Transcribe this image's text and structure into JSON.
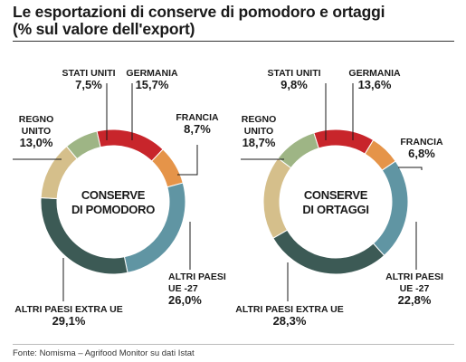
{
  "title_line1": "Le esportazioni di conserve di pomodoro e ortaggi",
  "title_line2": "(% sul valore dell'export)",
  "source": "Fonte: Nomisma – Agrifood Monitor su dati Istat",
  "colors": {
    "germania": "#c8252b",
    "francia": "#e59449",
    "altri_ue": "#6095a3",
    "extra_ue": "#3c5a55",
    "regno_unito": "#d5bf8b",
    "stati_uniti": "#9eb585",
    "leader": "#1a1a1a"
  },
  "chart_data": [
    {
      "type": "pie",
      "center_label": [
        "CONSERVE",
        "DI POMODORO"
      ],
      "slices": [
        {
          "key": "germania",
          "label": [
            "GERMANIA"
          ],
          "value": 15.7,
          "display": "15,7%"
        },
        {
          "key": "francia",
          "label": [
            "FRANCIA"
          ],
          "value": 8.7,
          "display": "8,7%"
        },
        {
          "key": "altri_ue",
          "label": [
            "ALTRI PAESI",
            "UE -27"
          ],
          "value": 26.0,
          "display": "26,0%"
        },
        {
          "key": "extra_ue",
          "label": [
            "ALTRI PAESI EXTRA UE"
          ],
          "value": 29.1,
          "display": "29,1%"
        },
        {
          "key": "regno_unito",
          "label": [
            "REGNO",
            "UNITO"
          ],
          "value": 13.0,
          "display": "13,0%"
        },
        {
          "key": "stati_uniti",
          "label": [
            "STATI UNITI"
          ],
          "value": 7.5,
          "display": "7,5%"
        }
      ]
    },
    {
      "type": "pie",
      "center_label": [
        "CONSERVE",
        "DI ORTAGGI"
      ],
      "slices": [
        {
          "key": "germania",
          "label": [
            "GERMANIA"
          ],
          "value": 13.6,
          "display": "13,6%"
        },
        {
          "key": "francia",
          "label": [
            "FRANCIA"
          ],
          "value": 6.8,
          "display": "6,8%"
        },
        {
          "key": "altri_ue",
          "label": [
            "ALTRI PAESI",
            "UE -27"
          ],
          "value": 22.8,
          "display": "22,8%"
        },
        {
          "key": "extra_ue",
          "label": [
            "ALTRI PAESI EXTRA UE"
          ],
          "value": 28.3,
          "display": "28,3%"
        },
        {
          "key": "regno_unito",
          "label": [
            "REGNO",
            "UNITO"
          ],
          "value": 18.7,
          "display": "18,7%"
        },
        {
          "key": "stati_uniti",
          "label": [
            "STATI UNITI"
          ],
          "value": 9.8,
          "display": "9,8%"
        }
      ]
    }
  ]
}
